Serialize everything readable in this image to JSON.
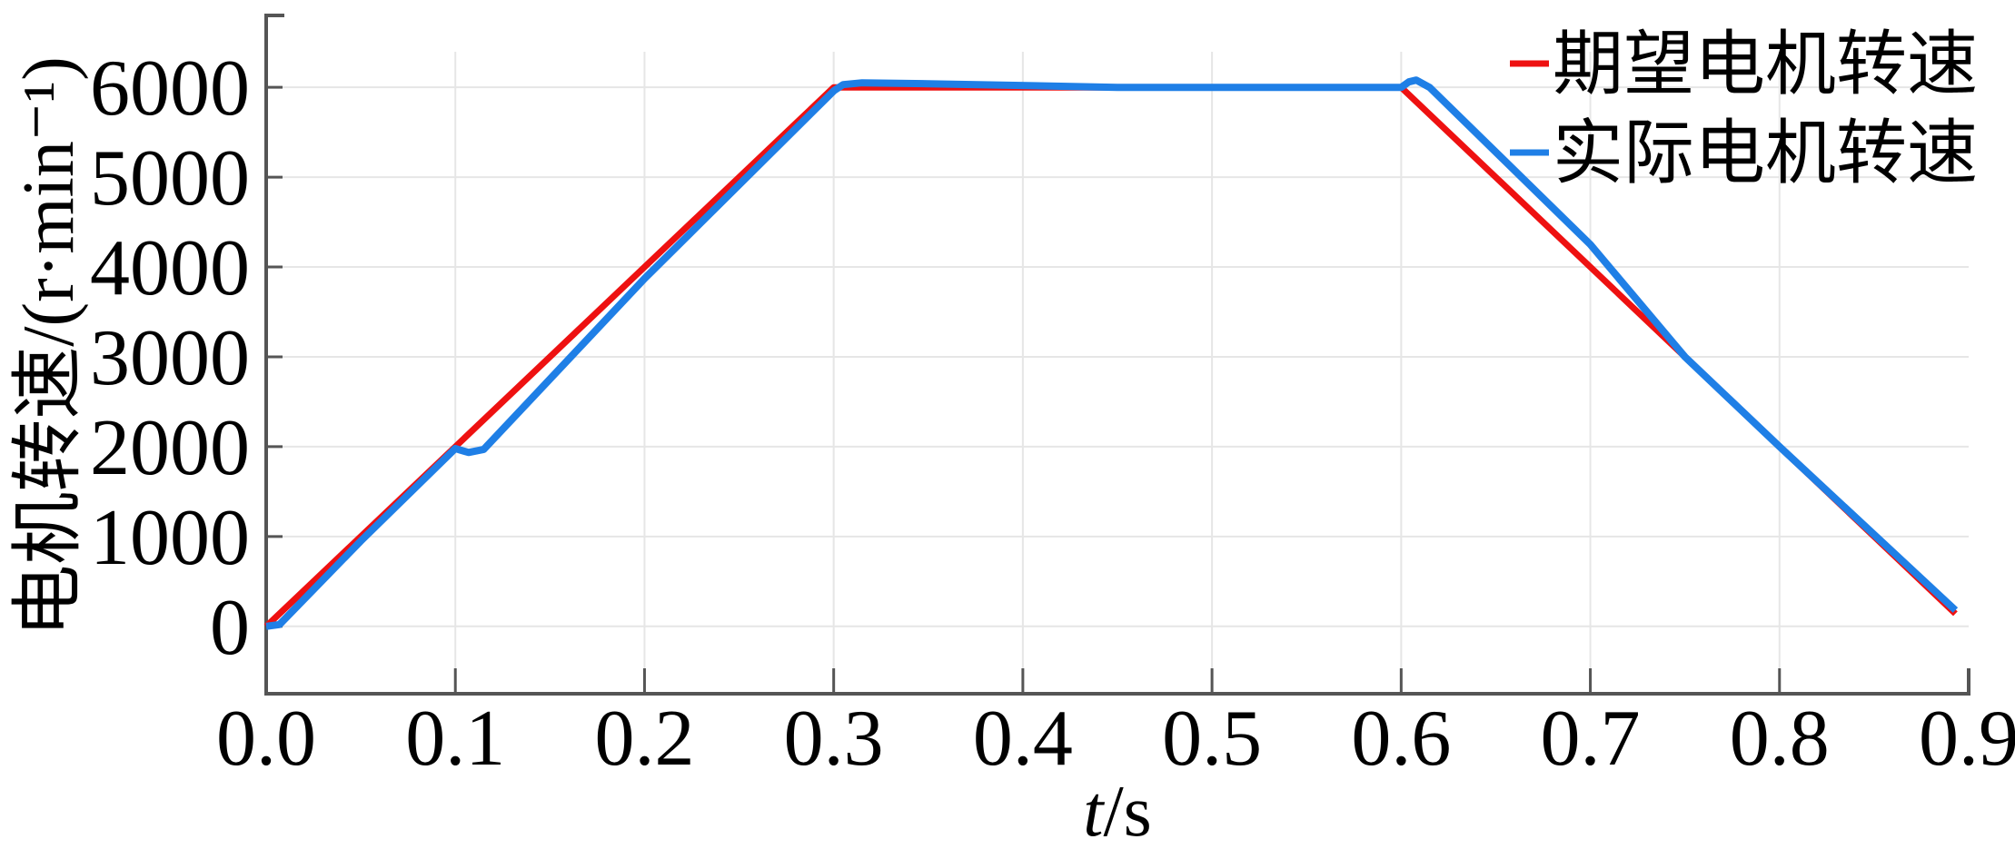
{
  "chart_data": {
    "type": "line",
    "title": "",
    "xlabel_italic": "t",
    "xlabel_unit": "/s",
    "ylabel": "电机转速/(r·min⁻¹)",
    "xlim": [
      0,
      0.9
    ],
    "ylim": [
      -750,
      6800
    ],
    "xticks": [
      0,
      0.1,
      0.2,
      0.3,
      0.4,
      0.5,
      0.6,
      0.7,
      0.8,
      0.9
    ],
    "xtick_labels": [
      "0.0",
      "0.1",
      "0.2",
      "0.3",
      "0.4",
      "0.5",
      "0.6",
      "0.7",
      "0.8",
      "0.9"
    ],
    "yticks": [
      0,
      1000,
      2000,
      3000,
      4000,
      5000,
      6000
    ],
    "ytick_labels": [
      "0",
      "1000",
      "2000",
      "3000",
      "4000",
      "5000",
      "6000"
    ],
    "grid": true,
    "legend_position": "top-right",
    "series": [
      {
        "name": "期望电机转速",
        "color": "#ee1111",
        "x": [
          0,
          0.3,
          0.6,
          0.893
        ],
        "y": [
          0,
          6000,
          6000,
          140
        ]
      },
      {
        "name": "实际电机转速",
        "color": "#1f7fe6",
        "x": [
          0,
          0.007,
          0.05,
          0.1,
          0.103,
          0.107,
          0.115,
          0.2,
          0.3,
          0.305,
          0.315,
          0.35,
          0.45,
          0.6,
          0.604,
          0.608,
          0.615,
          0.7,
          0.75,
          0.8,
          0.893
        ],
        "y": [
          0,
          20,
          950,
          1980,
          1960,
          1935,
          1970,
          3870,
          5960,
          6030,
          6050,
          6040,
          6000,
          6000,
          6060,
          6080,
          6000,
          4250,
          3000,
          2000,
          180
        ]
      }
    ]
  }
}
